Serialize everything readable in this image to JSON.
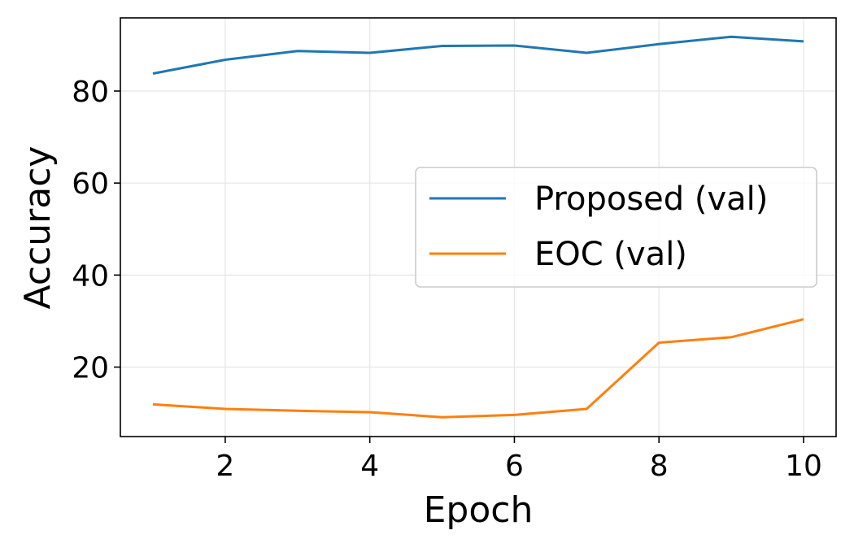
{
  "chart_data": {
    "type": "line",
    "title": "",
    "xlabel": "Epoch",
    "ylabel": "Accuracy",
    "xlim": [
      0.55,
      10.45
    ],
    "ylim": [
      4.9,
      95.9
    ],
    "xticks": [
      2,
      4,
      6,
      8,
      10
    ],
    "yticks": [
      20,
      40,
      60,
      80
    ],
    "grid": true,
    "legend_position": "center-right",
    "x": [
      1,
      2,
      3,
      4,
      5,
      6,
      7,
      8,
      9,
      10
    ],
    "series": [
      {
        "name": "Proposed (val)",
        "color": "#1f77b4",
        "values": [
          83.8,
          86.8,
          88.7,
          88.3,
          89.8,
          89.9,
          88.3,
          90.2,
          91.8,
          90.8
        ]
      },
      {
        "name": "EOC (val)",
        "color": "#ff7f0e",
        "values": [
          11.9,
          10.9,
          10.5,
          10.2,
          9.1,
          9.6,
          10.9,
          25.3,
          26.5,
          30.4
        ]
      }
    ]
  }
}
